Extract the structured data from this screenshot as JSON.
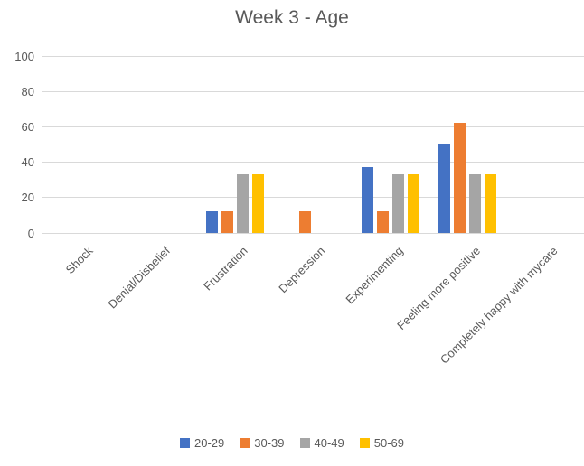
{
  "chart_data": {
    "type": "bar",
    "title": "Week 3 - Age",
    "categories": [
      "Shock",
      "Denial/Disbelief",
      "Frustration",
      "Depression",
      "Experimenting",
      "Feeling more positive",
      "Completely happy with mycare"
    ],
    "series": [
      {
        "name": "20-29",
        "color": "#4472C4",
        "values": [
          0,
          0,
          12.5,
          0,
          37.5,
          50,
          0
        ]
      },
      {
        "name": "30-39",
        "color": "#ED7D31",
        "values": [
          0,
          0,
          12.5,
          12.5,
          12.5,
          62.5,
          0
        ]
      },
      {
        "name": "40-49",
        "color": "#A5A5A5",
        "values": [
          0,
          0,
          33.3,
          0,
          33.3,
          33.3,
          0
        ]
      },
      {
        "name": "50-69",
        "color": "#FFC000",
        "values": [
          0,
          0,
          33.3,
          0,
          33.3,
          33.3,
          0
        ]
      }
    ],
    "ylim": [
      0,
      100
    ],
    "yticks": [
      0,
      20,
      40,
      60,
      80,
      100
    ],
    "xlabel": "",
    "ylabel": "",
    "grid": true,
    "legend_position": "bottom",
    "x_tick_rotation_deg": 45
  },
  "colors": {
    "text": "#595959",
    "gridline": "#D9D9D9",
    "background": "#FFFFFF"
  }
}
